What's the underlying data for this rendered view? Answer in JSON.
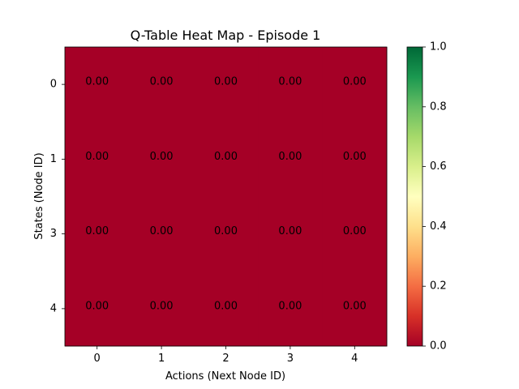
{
  "chart_data": {
    "type": "heatmap",
    "title": "Q-Table Heat Map - Episode 1",
    "xlabel": "Actions (Next Node ID)",
    "ylabel": "States (Node ID)",
    "x_categories": [
      "0",
      "1",
      "2",
      "3",
      "4"
    ],
    "y_categories": [
      "0",
      "1",
      "3",
      "4"
    ],
    "values": [
      [
        0,
        0,
        0,
        0,
        0
      ],
      [
        0,
        0,
        0,
        0,
        0
      ],
      [
        0,
        0,
        0,
        0,
        0
      ],
      [
        0,
        0,
        0,
        0,
        0
      ]
    ],
    "value_format": "0.00",
    "colormap": "RdYlGn",
    "vmin": 0.0,
    "vmax": 1.0,
    "colorbar_ticks": [
      "0.0",
      "0.2",
      "0.4",
      "0.6",
      "0.8",
      "1.0"
    ],
    "colorbar_tick_values": [
      0.0,
      0.2,
      0.4,
      0.6,
      0.8,
      1.0
    ],
    "colorbar_stops": [
      "#a50026",
      "#d73027",
      "#f46d43",
      "#fdae61",
      "#fee08b",
      "#ffffbf",
      "#d9ef8b",
      "#a6d96a",
      "#66bd63",
      "#1a9850",
      "#006837"
    ],
    "grid": false
  }
}
